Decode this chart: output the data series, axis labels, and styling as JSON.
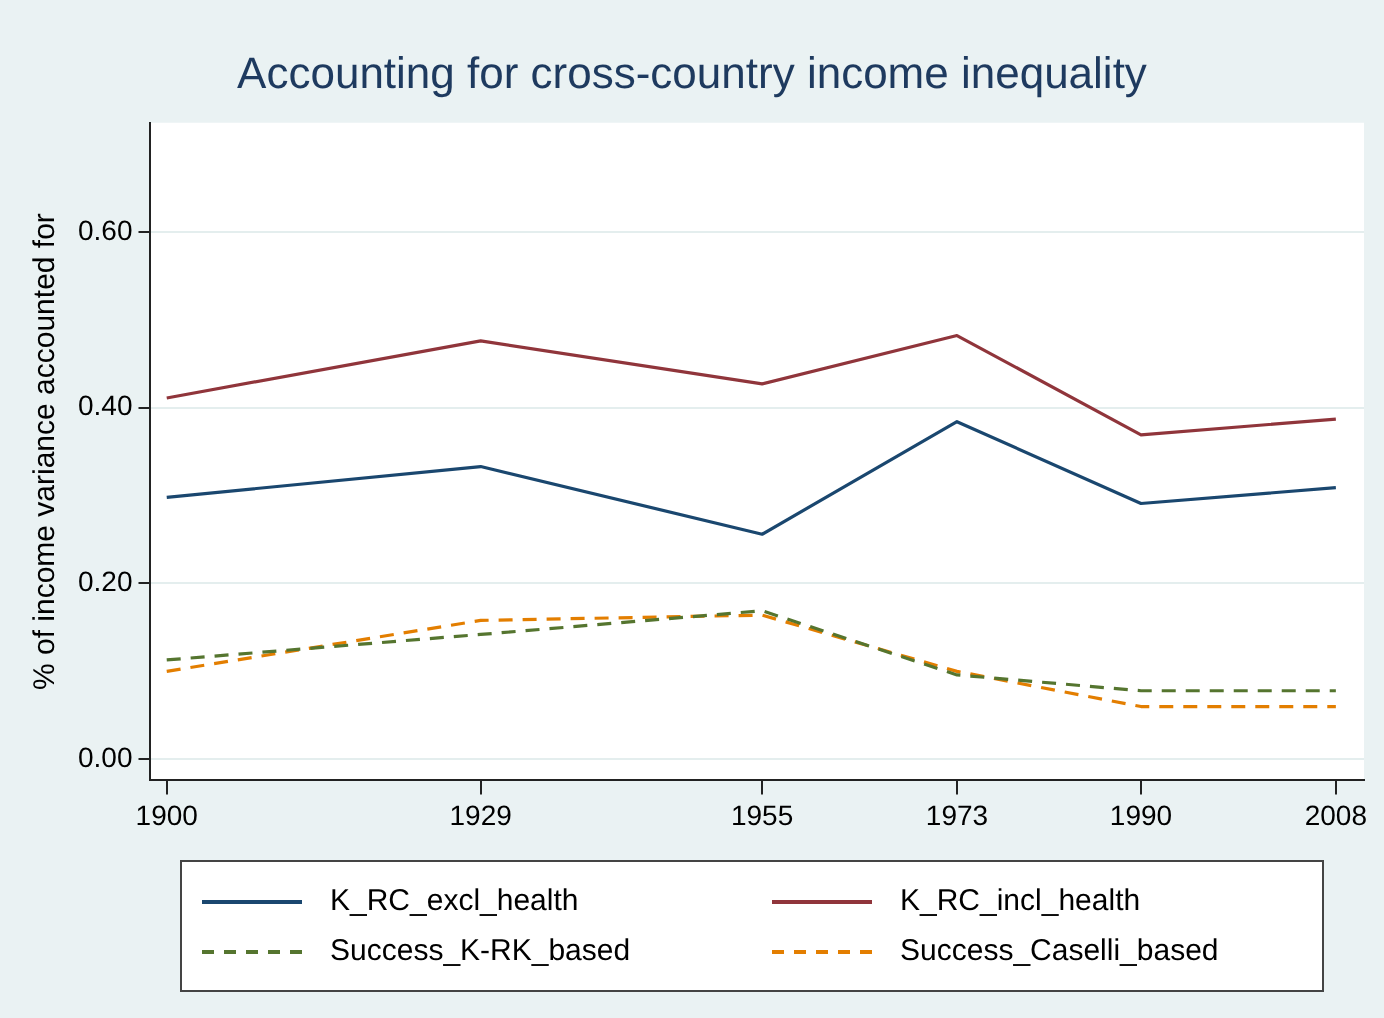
{
  "chart_data": {
    "type": "line",
    "title": "Accounting for cross-country income inequality",
    "ylabel": "% of income variance accounted for",
    "x": [
      1900,
      1929,
      1955,
      1973,
      1990,
      2008
    ],
    "series": [
      {
        "name": "K_RC_excl_health",
        "color": "#1a476f",
        "line_style": "solid",
        "values": [
          0.298,
          0.333,
          0.256,
          0.384,
          0.291,
          0.309
        ]
      },
      {
        "name": "K_RC_incl_health",
        "color": "#90353b",
        "line_style": "solid",
        "values": [
          0.411,
          0.476,
          0.427,
          0.482,
          0.369,
          0.387
        ]
      },
      {
        "name": "Success_K-RK_based",
        "color": "#55752f",
        "line_style": "dashed",
        "values": [
          0.113,
          0.142,
          0.169,
          0.096,
          0.078,
          0.078
        ]
      },
      {
        "name": "Success_Caselli_based",
        "color": "#e37e00",
        "line_style": "dashed",
        "values": [
          0.1,
          0.158,
          0.164,
          0.1,
          0.06,
          0.06
        ]
      }
    ],
    "xlim": [
      1898.5,
      2010.6
    ],
    "xticks": [
      1900,
      1929,
      1955,
      1973,
      1990,
      2008
    ],
    "ylim": [
      -0.024,
      0.724
    ],
    "yticks": [
      {
        "value": 0,
        "label": "0.00"
      },
      {
        "value": 0.2,
        "label": "0.20"
      },
      {
        "value": 0.4,
        "label": "0.40"
      },
      {
        "value": 0.6,
        "label": "0.60"
      }
    ],
    "grid": "y",
    "legend": "bottom",
    "marker": "none"
  }
}
